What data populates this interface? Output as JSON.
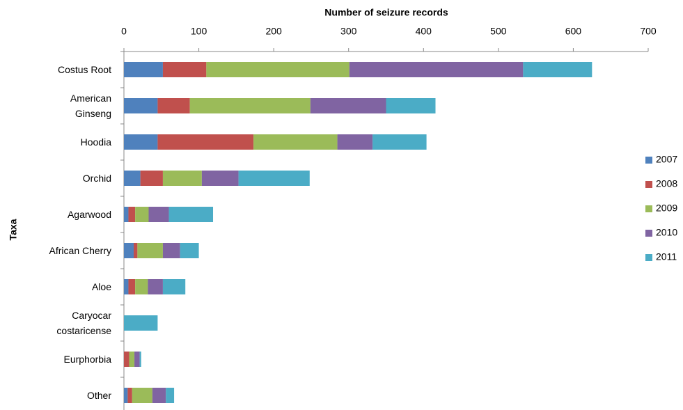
{
  "chart_data": {
    "type": "stacked_barh",
    "x_label": "Number of seizure records",
    "y_label": "Taxa",
    "categories": [
      "Costus Root",
      "American\nGinseng",
      "Hoodia",
      "Orchid",
      "Agarwood",
      "African Cherry",
      "Aloe",
      "Caryocar\ncostaricense",
      "Eurphorbia",
      "Other"
    ],
    "series": [
      {
        "name": "2007",
        "color": "#4f81bd",
        "values": [
          52,
          45,
          45,
          22,
          6,
          13,
          6,
          0,
          0,
          5
        ]
      },
      {
        "name": "2008",
        "color": "#c0504d",
        "values": [
          58,
          43,
          128,
          30,
          9,
          5,
          9,
          0,
          7,
          6
        ]
      },
      {
        "name": "2009",
        "color": "#9bbb59",
        "values": [
          191,
          161,
          112,
          52,
          18,
          34,
          17,
          0,
          7,
          27
        ]
      },
      {
        "name": "2010",
        "color": "#8064a2",
        "values": [
          232,
          101,
          47,
          49,
          27,
          23,
          20,
          0,
          7,
          18
        ]
      },
      {
        "name": "2011",
        "color": "#4bacc6",
        "values": [
          92,
          66,
          72,
          95,
          59,
          25,
          30,
          45,
          2,
          11
        ]
      }
    ],
    "xlim": [
      0,
      700
    ],
    "xticks": [
      0,
      100,
      200,
      300,
      400,
      500,
      600,
      700
    ],
    "legend": "right"
  }
}
